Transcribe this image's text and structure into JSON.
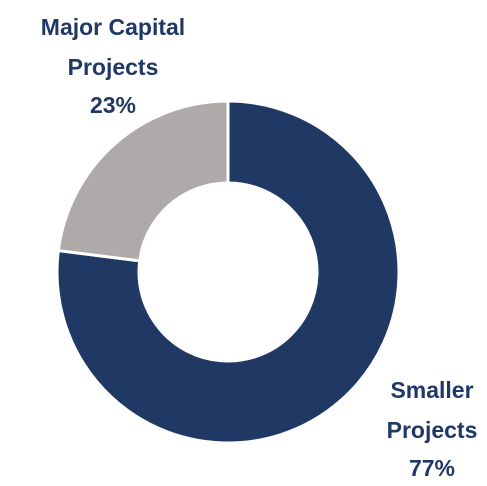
{
  "chart_data": {
    "type": "donut",
    "categories": [
      "Smaller Projects",
      "Major Capital Projects"
    ],
    "values": [
      77,
      23
    ],
    "value_labels": [
      "77%",
      "23%"
    ],
    "colors": [
      "#203864",
      "#aeaaaa"
    ]
  }
}
